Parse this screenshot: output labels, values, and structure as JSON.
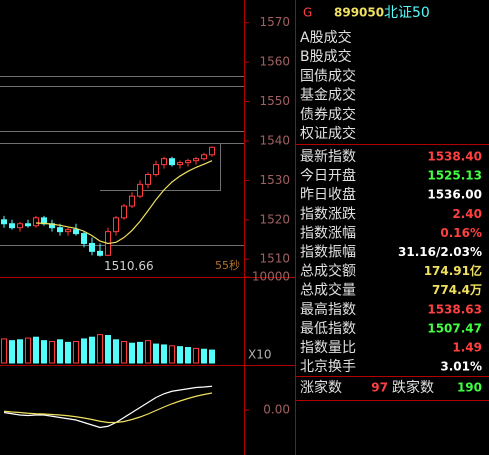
{
  "chart_data": [
    {
      "type": "candlestick",
      "ylim": [
        1506,
        1575
      ],
      "yticks": [
        1510,
        1520,
        1530,
        1540,
        1550,
        1560,
        1570
      ],
      "up_color": "#ff3c3c",
      "down_color": "#54fcfc",
      "open": [
        1520,
        1519,
        1518,
        1519,
        1518.5,
        1520.5,
        1519,
        1518,
        1517,
        1517.5,
        1516.5,
        1514,
        1512,
        1511,
        1517,
        1520.5,
        1523.5,
        1526,
        1529,
        1531.5,
        1534,
        1535.5,
        1534,
        1534.5,
        1535,
        1535.5,
        1536.5
      ],
      "high": [
        1521,
        1520,
        1519.5,
        1520,
        1521,
        1521,
        1520,
        1519,
        1518,
        1519,
        1517,
        1515.5,
        1514,
        1518,
        1521,
        1524,
        1527,
        1530,
        1532,
        1535,
        1536,
        1536,
        1535,
        1535.5,
        1536,
        1537,
        1538.63
      ],
      "low": [
        1518,
        1517.5,
        1517,
        1518,
        1518,
        1518.5,
        1517,
        1516,
        1516,
        1516,
        1513,
        1511,
        1510.66,
        1510.8,
        1516,
        1520,
        1523,
        1525.5,
        1528,
        1531,
        1533,
        1533.5,
        1533,
        1533.5,
        1534,
        1535,
        1536
      ],
      "close": [
        1519,
        1518,
        1519,
        1518.5,
        1520.5,
        1519,
        1518,
        1517,
        1517.5,
        1516.5,
        1514,
        1512,
        1511,
        1517,
        1520.5,
        1523.5,
        1526,
        1529,
        1531.5,
        1534,
        1535.5,
        1534,
        1534.5,
        1535,
        1535.5,
        1536.5,
        1538.4
      ],
      "ma": {
        "color": "#f0e060",
        "values": [
          null,
          null,
          null,
          null,
          1519.2,
          1519.1,
          1518.9,
          1518.6,
          1518.2,
          1517.8,
          1517.1,
          1516.0,
          1514.6,
          1514.0,
          1514.3,
          1515.5,
          1517.3,
          1519.6,
          1522.3,
          1525.1,
          1527.6,
          1529.6,
          1531.1,
          1532.3,
          1533.3,
          1534.1,
          1535.0
        ]
      },
      "low_label": "1510.66",
      "time_label": "55秒"
    },
    {
      "type": "bar",
      "ylim": [
        0,
        10000
      ],
      "yticks": [
        10000
      ],
      "scale_label": "X10",
      "values": [
        2800,
        2600,
        2700,
        2900,
        3000,
        2600,
        2500,
        2700,
        2400,
        2500,
        2800,
        3000,
        3300,
        3200,
        2700,
        2500,
        2300,
        2400,
        2600,
        2200,
        2100,
        2000,
        1900,
        1800,
        1700,
        1600,
        1500
      ]
    },
    {
      "type": "line",
      "ylim": [
        -1.8,
        1.8
      ],
      "yticks": [
        {
          "value": 0,
          "label": "0.00"
        }
      ],
      "series": [
        {
          "color": "#ffffff",
          "values": [
            -0.1,
            -0.15,
            -0.2,
            -0.22,
            -0.2,
            -0.2,
            -0.25,
            -0.3,
            -0.35,
            -0.4,
            -0.5,
            -0.6,
            -0.7,
            -0.65,
            -0.5,
            -0.3,
            -0.1,
            0.1,
            0.3,
            0.5,
            0.65,
            0.75,
            0.8,
            0.85,
            0.9,
            0.92,
            0.95
          ]
        },
        {
          "color": "#f0e060",
          "values": [
            -0.05,
            -0.08,
            -0.1,
            -0.13,
            -0.15,
            -0.16,
            -0.18,
            -0.2,
            -0.23,
            -0.27,
            -0.32,
            -0.38,
            -0.45,
            -0.5,
            -0.5,
            -0.46,
            -0.38,
            -0.28,
            -0.16,
            -0.02,
            0.12,
            0.25,
            0.36,
            0.46,
            0.55,
            0.62,
            0.68
          ]
        }
      ]
    }
  ],
  "panel": {
    "flag": "G",
    "code": "899050",
    "name": "北证50",
    "trades": [
      "A股成交",
      "B股成交",
      "国债成交",
      "基金成交",
      "债券成交",
      "权证成交"
    ],
    "rows": [
      {
        "label": "最新指数",
        "value": "1538.40",
        "color": "#ff4040"
      },
      {
        "label": "今日开盘",
        "value": "1525.13",
        "color": "#40ff40"
      },
      {
        "label": "昨日收盘",
        "value": "1536.00",
        "color": "#ffffff"
      },
      {
        "label": "指数涨跌",
        "value": "2.40",
        "color": "#ff4040"
      },
      {
        "label": "指数涨幅",
        "value": "0.16%",
        "color": "#ff4040"
      },
      {
        "label": "指数振幅",
        "value": "31.16/2.03%",
        "color": "#ffffff"
      },
      {
        "label": "总成交额",
        "value": "174.91亿",
        "color": "#f0e060"
      },
      {
        "label": "总成交量",
        "value": "774.4万",
        "color": "#f0e060"
      },
      {
        "label": "最高指数",
        "value": "1538.63",
        "color": "#ff4040"
      },
      {
        "label": "最低指数",
        "value": "1507.47",
        "color": "#40ff40"
      },
      {
        "label": "指数量比",
        "value": "1.49",
        "color": "#ff4040"
      },
      {
        "label": "北京换手",
        "value": "3.01%",
        "color": "#ffffff"
      }
    ],
    "up_label": "涨家数",
    "up_count": "97",
    "down_label": "跌家数",
    "down_count": "190"
  }
}
